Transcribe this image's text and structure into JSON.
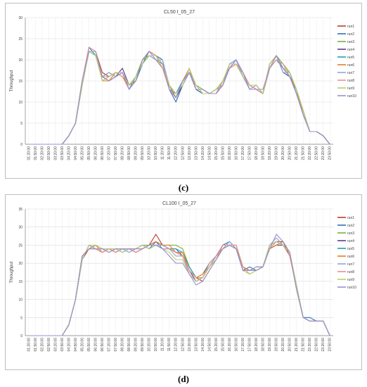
{
  "captions": [
    "(c)",
    "(d)"
  ],
  "chart_data": [
    {
      "type": "line",
      "title": "CL50 I_05_27",
      "ylabel": "Throughput",
      "xlabel": "",
      "ylim": [
        0,
        30
      ],
      "yticks": [
        0,
        5,
        10,
        15,
        20,
        25,
        30
      ],
      "grid": true,
      "legend_position": "right",
      "x": [
        "01:20:00",
        "01:50:00",
        "02:20:00",
        "02:50:00",
        "03:20:00",
        "03:50:00",
        "04:20:00",
        "04:50:00",
        "05:20:00",
        "05:50:00",
        "06:20:00",
        "06:50:00",
        "07:20:00",
        "07:50:00",
        "08:20:00",
        "08:50:00",
        "09:20:00",
        "09:50:00",
        "10:20:00",
        "10:50:00",
        "11:20:00",
        "11:50:00",
        "12:20:00",
        "12:50:00",
        "13:20:00",
        "13:50:00",
        "14:20:00",
        "14:50:00",
        "15:20:00",
        "15:50:00",
        "16:20:00",
        "16:50:00",
        "17:20:00",
        "17:50:00",
        "18:20:00",
        "18:50:00",
        "19:20:00",
        "19:50:00",
        "20:20:00",
        "20:50:00",
        "21:20:00",
        "21:50:00",
        "22:20:00",
        "22:50:00",
        "23:20:00",
        "23:50:00"
      ],
      "series": [
        {
          "name": "run1",
          "color": "#c0392b",
          "values": [
            0,
            0,
            0,
            0,
            0,
            0,
            2,
            5,
            14,
            22,
            22,
            17,
            16,
            17,
            17,
            14,
            15,
            19,
            21,
            21,
            19,
            14,
            11,
            15,
            17,
            13,
            12,
            12,
            13,
            14,
            18,
            19,
            17,
            14,
            14,
            12,
            18,
            21,
            18,
            17,
            13,
            8,
            3,
            3,
            2,
            0
          ]
        },
        {
          "name": "run2",
          "color": "#2e6fba",
          "values": [
            0,
            0,
            0,
            0,
            0,
            0,
            2,
            5,
            15,
            23,
            21,
            16,
            17,
            16,
            17,
            13,
            15,
            19,
            22,
            21,
            20,
            13,
            10,
            14,
            18,
            13,
            12,
            12,
            12,
            14,
            19,
            20,
            16,
            14,
            13,
            12,
            19,
            21,
            17,
            16,
            12,
            7,
            3,
            3,
            2,
            0
          ]
        },
        {
          "name": "run3",
          "color": "#7fae3a",
          "values": [
            0,
            0,
            0,
            0,
            0,
            0,
            2,
            5,
            14,
            22,
            22,
            15,
            16,
            17,
            16,
            14,
            16,
            20,
            21,
            20,
            18,
            14,
            12,
            15,
            17,
            14,
            13,
            12,
            13,
            15,
            18,
            19,
            16,
            14,
            13,
            12,
            18,
            21,
            19,
            17,
            13,
            8,
            3,
            3,
            2,
            0
          ]
        },
        {
          "name": "run4",
          "color": "#5a3d8a",
          "values": [
            0,
            0,
            0,
            0,
            0,
            0,
            2,
            5,
            15,
            22,
            21,
            16,
            15,
            16,
            18,
            14,
            15,
            20,
            22,
            21,
            19,
            14,
            11,
            14,
            17,
            13,
            13,
            12,
            12,
            14,
            18,
            20,
            17,
            13,
            13,
            12,
            19,
            21,
            18,
            16,
            13,
            7,
            3,
            3,
            2,
            0
          ]
        },
        {
          "name": "run5",
          "color": "#1fa1b8",
          "values": [
            0,
            0,
            0,
            0,
            0,
            0,
            2,
            5,
            14,
            23,
            21,
            16,
            16,
            17,
            17,
            13,
            16,
            19,
            21,
            21,
            19,
            13,
            12,
            15,
            17,
            14,
            12,
            12,
            13,
            14,
            19,
            19,
            16,
            14,
            14,
            12,
            18,
            20,
            18,
            17,
            12,
            8,
            3,
            3,
            2,
            0
          ]
        },
        {
          "name": "run6",
          "color": "#e67e22",
          "values": [
            0,
            0,
            0,
            0,
            0,
            0,
            2,
            5,
            15,
            22,
            22,
            15,
            15,
            17,
            16,
            14,
            15,
            20,
            22,
            21,
            19,
            14,
            11,
            15,
            18,
            13,
            13,
            12,
            12,
            15,
            18,
            19,
            17,
            14,
            13,
            13,
            18,
            21,
            18,
            16,
            13,
            7,
            3,
            3,
            2,
            0
          ]
        },
        {
          "name": "run7",
          "color": "#8fa8d8",
          "values": [
            0,
            0,
            0,
            0,
            0,
            0,
            2,
            5,
            14,
            22,
            21,
            16,
            17,
            16,
            17,
            14,
            16,
            19,
            21,
            20,
            20,
            14,
            12,
            14,
            17,
            14,
            12,
            12,
            13,
            14,
            19,
            20,
            16,
            13,
            14,
            12,
            19,
            21,
            17,
            17,
            13,
            8,
            3,
            3,
            2,
            0
          ]
        },
        {
          "name": "run8",
          "color": "#f08e8e",
          "values": [
            0,
            0,
            0,
            0,
            0,
            0,
            2,
            5,
            15,
            23,
            22,
            16,
            16,
            17,
            16,
            13,
            15,
            20,
            22,
            21,
            18,
            13,
            11,
            15,
            17,
            13,
            13,
            12,
            12,
            14,
            18,
            19,
            17,
            14,
            13,
            12,
            18,
            20,
            19,
            16,
            12,
            7,
            3,
            3,
            2,
            0
          ]
        },
        {
          "name": "run9",
          "color": "#b5d16c",
          "values": [
            0,
            0,
            0,
            0,
            0,
            0,
            2,
            5,
            14,
            22,
            21,
            15,
            16,
            17,
            17,
            14,
            16,
            19,
            21,
            21,
            19,
            14,
            12,
            14,
            18,
            14,
            12,
            12,
            13,
            15,
            19,
            19,
            16,
            14,
            14,
            12,
            19,
            21,
            18,
            17,
            13,
            8,
            3,
            3,
            2,
            0
          ]
        },
        {
          "name": "run10",
          "color": "#9b8fd0",
          "values": [
            0,
            0,
            0,
            0,
            0,
            0,
            2,
            5,
            15,
            22,
            22,
            16,
            15,
            16,
            17,
            13,
            15,
            20,
            22,
            20,
            19,
            13,
            11,
            15,
            17,
            13,
            13,
            12,
            12,
            14,
            18,
            20,
            17,
            13,
            13,
            13,
            18,
            21,
            18,
            16,
            12,
            7,
            3,
            3,
            2,
            0
          ]
        }
      ]
    },
    {
      "type": "line",
      "title": "CL100 I_05_27",
      "ylabel": "Throughput",
      "xlabel": "",
      "ylim": [
        0,
        35
      ],
      "yticks": [
        0,
        5,
        10,
        15,
        20,
        25,
        30,
        35
      ],
      "grid": true,
      "legend_position": "right",
      "x": [
        "01:20:00",
        "01:50:00",
        "02:20:00",
        "02:50:00",
        "03:20:00",
        "03:50:00",
        "04:20:00",
        "04:50:00",
        "05:20:00",
        "05:50:00",
        "06:20:00",
        "06:50:00",
        "07:20:00",
        "07:50:00",
        "08:20:00",
        "08:50:00",
        "09:20:00",
        "09:50:00",
        "10:20:00",
        "10:50:00",
        "11:20:00",
        "11:50:00",
        "12:20:00",
        "12:50:00",
        "13:20:00",
        "13:50:00",
        "14:20:00",
        "14:50:00",
        "15:20:00",
        "15:50:00",
        "16:20:00",
        "16:50:00",
        "17:20:00",
        "17:50:00",
        "18:20:00",
        "18:50:00",
        "19:20:00",
        "19:50:00",
        "20:20:00",
        "20:50:00",
        "21:20:00",
        "21:50:00",
        "22:20:00",
        "22:50:00",
        "23:20:00",
        "23:50:00"
      ],
      "series": [
        {
          "name": "run1",
          "color": "#c0392b",
          "values": [
            0,
            0,
            0,
            0,
            0,
            0,
            3,
            10,
            21,
            24,
            24,
            23,
            24,
            23,
            24,
            24,
            23,
            24,
            25,
            28,
            25,
            24,
            23,
            23,
            19,
            16,
            15,
            18,
            21,
            24,
            25,
            24,
            19,
            18,
            18,
            19,
            25,
            26,
            26,
            22,
            14,
            5,
            4,
            4,
            4,
            0
          ]
        },
        {
          "name": "run2",
          "color": "#2e6fba",
          "values": [
            0,
            0,
            0,
            0,
            0,
            0,
            3,
            10,
            22,
            24,
            25,
            24,
            24,
            24,
            23,
            24,
            24,
            25,
            24,
            26,
            24,
            24,
            24,
            22,
            18,
            16,
            17,
            20,
            22,
            25,
            26,
            24,
            18,
            19,
            18,
            19,
            24,
            26,
            25,
            23,
            13,
            5,
            5,
            4,
            4,
            0
          ]
        },
        {
          "name": "run3",
          "color": "#7fae3a",
          "values": [
            0,
            0,
            0,
            0,
            0,
            0,
            3,
            10,
            21,
            25,
            24,
            24,
            23,
            24,
            24,
            23,
            24,
            25,
            25,
            25,
            25,
            25,
            25,
            24,
            19,
            16,
            16,
            19,
            22,
            24,
            25,
            25,
            19,
            18,
            18,
            19,
            25,
            26,
            25,
            23,
            14,
            5,
            4,
            4,
            4,
            0
          ]
        },
        {
          "name": "run4",
          "color": "#5a3d8a",
          "values": [
            0,
            0,
            0,
            0,
            0,
            0,
            3,
            10,
            22,
            24,
            24,
            23,
            24,
            23,
            24,
            24,
            23,
            24,
            25,
            26,
            25,
            24,
            23,
            22,
            18,
            15,
            16,
            19,
            22,
            25,
            25,
            24,
            18,
            18,
            19,
            19,
            24,
            25,
            25,
            23,
            13,
            5,
            4,
            4,
            4,
            0
          ]
        },
        {
          "name": "run5",
          "color": "#1fa1b8",
          "values": [
            0,
            0,
            0,
            0,
            0,
            0,
            3,
            10,
            21,
            25,
            24,
            24,
            24,
            24,
            23,
            24,
            24,
            25,
            24,
            25,
            24,
            24,
            24,
            23,
            19,
            16,
            16,
            20,
            22,
            24,
            26,
            24,
            19,
            18,
            18,
            19,
            25,
            26,
            25,
            22,
            14,
            5,
            4,
            4,
            4,
            0
          ]
        },
        {
          "name": "run6",
          "color": "#e67e22",
          "values": [
            0,
            0,
            0,
            0,
            0,
            0,
            3,
            10,
            22,
            24,
            25,
            23,
            24,
            24,
            24,
            24,
            24,
            24,
            25,
            26,
            25,
            25,
            23,
            23,
            18,
            16,
            17,
            19,
            21,
            25,
            25,
            25,
            19,
            18,
            18,
            19,
            24,
            25,
            26,
            23,
            13,
            5,
            4,
            4,
            4,
            0
          ]
        },
        {
          "name": "run7",
          "color": "#8fa8d8",
          "values": [
            0,
            0,
            0,
            0,
            0,
            0,
            3,
            10,
            21,
            25,
            24,
            24,
            23,
            24,
            24,
            23,
            24,
            25,
            24,
            25,
            25,
            24,
            22,
            22,
            17,
            15,
            16,
            19,
            22,
            24,
            26,
            24,
            18,
            18,
            19,
            19,
            25,
            27,
            25,
            23,
            14,
            5,
            4,
            4,
            4,
            0
          ]
        },
        {
          "name": "run8",
          "color": "#f08e8e",
          "values": [
            0,
            0,
            0,
            0,
            0,
            0,
            3,
            10,
            22,
            24,
            24,
            23,
            24,
            23,
            24,
            24,
            23,
            24,
            25,
            25,
            24,
            24,
            23,
            22,
            18,
            16,
            16,
            20,
            22,
            25,
            25,
            25,
            19,
            17,
            18,
            19,
            24,
            26,
            25,
            22,
            13,
            5,
            4,
            4,
            4,
            0
          ]
        },
        {
          "name": "run9",
          "color": "#b5d16c",
          "values": [
            0,
            0,
            0,
            0,
            0,
            0,
            3,
            10,
            21,
            25,
            25,
            24,
            24,
            24,
            23,
            24,
            24,
            25,
            24,
            25,
            24,
            23,
            21,
            21,
            17,
            15,
            16,
            19,
            21,
            24,
            25,
            24,
            18,
            17,
            18,
            19,
            25,
            26,
            25,
            23,
            14,
            5,
            4,
            4,
            4,
            0
          ]
        },
        {
          "name": "run10",
          "color": "#9b8fd0",
          "values": [
            0,
            0,
            0,
            0,
            0,
            0,
            3,
            10,
            22,
            24,
            24,
            24,
            23,
            24,
            24,
            24,
            24,
            24,
            25,
            25,
            24,
            22,
            20,
            20,
            17,
            14,
            15,
            18,
            21,
            24,
            25,
            24,
            18,
            18,
            18,
            19,
            24,
            28,
            26,
            23,
            13,
            5,
            4,
            4,
            4,
            0
          ]
        }
      ]
    }
  ]
}
